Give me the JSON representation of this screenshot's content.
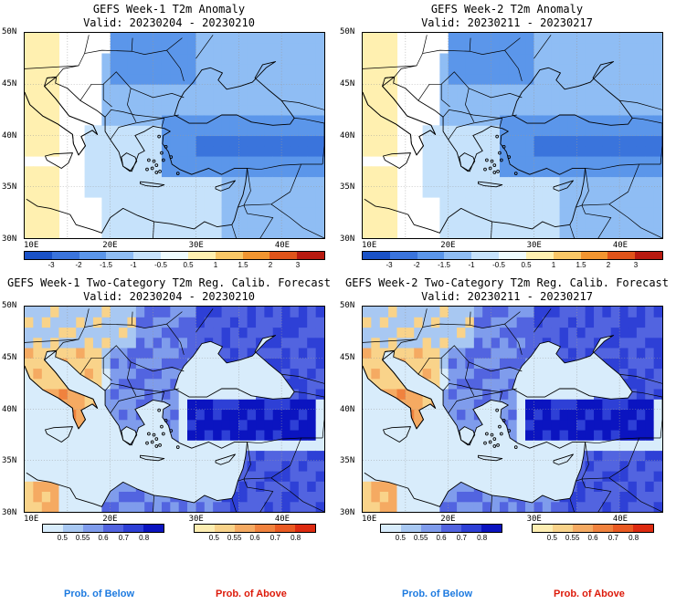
{
  "panels": {
    "p1": {
      "title": "GEFS Week-1 T2m Anomaly",
      "valid": "Valid: 20230204 - 20230210"
    },
    "p2": {
      "title": "GEFS Week-2 T2m Anomaly",
      "valid": "Valid: 20230211 - 20230217"
    },
    "p3": {
      "title": "GEFS Week-1 Two-Category T2m Reg. Calib. Forecast",
      "valid": "Valid: 20230204 - 20230210"
    },
    "p4": {
      "title": "GEFS Week-2 Two-Category T2m Reg. Calib. Forecast",
      "valid": "Valid: 20230211 - 20230217"
    }
  },
  "axes": {
    "lat_labels": [
      "50N",
      "45N",
      "40N",
      "35N",
      "30N"
    ],
    "lon_labels": [
      "10E",
      "20E",
      "30E",
      "40E"
    ]
  },
  "anomaly_colorbar": {
    "labels": [
      "-3",
      "-2",
      "-1.5",
      "-1",
      "-0.5",
      "0.5",
      "1",
      "1.5",
      "2",
      "3"
    ],
    "colors": [
      "#1a52c8",
      "#3a74dc",
      "#5b96ea",
      "#8fbdf4",
      "#c6e2fb",
      "#eefbfd",
      "#fff0b0",
      "#f9c766",
      "#f29530",
      "#e0541a",
      "#b81a10"
    ]
  },
  "prob_colorbars": {
    "below": {
      "labels": [
        "0.5",
        "0.55",
        "0.6",
        "0.7",
        "0.8"
      ],
      "colors": [
        "#d8ecfb",
        "#a8c8f2",
        "#7f9cec",
        "#5264e0",
        "#2e40d6",
        "#0b14c0"
      ]
    },
    "above": {
      "labels": [
        "0.5",
        "0.55",
        "0.6",
        "0.7",
        "0.8"
      ],
      "colors": [
        "#fdeeb2",
        "#f9d38a",
        "#f5aa62",
        "#f0823e",
        "#ea5a22",
        "#dd2a10"
      ]
    }
  },
  "legend": {
    "below": "Prob. of Below",
    "above": "Prob. of Above",
    "below_color": "#1e7be0",
    "above_color": "#dd1a0a"
  }
}
